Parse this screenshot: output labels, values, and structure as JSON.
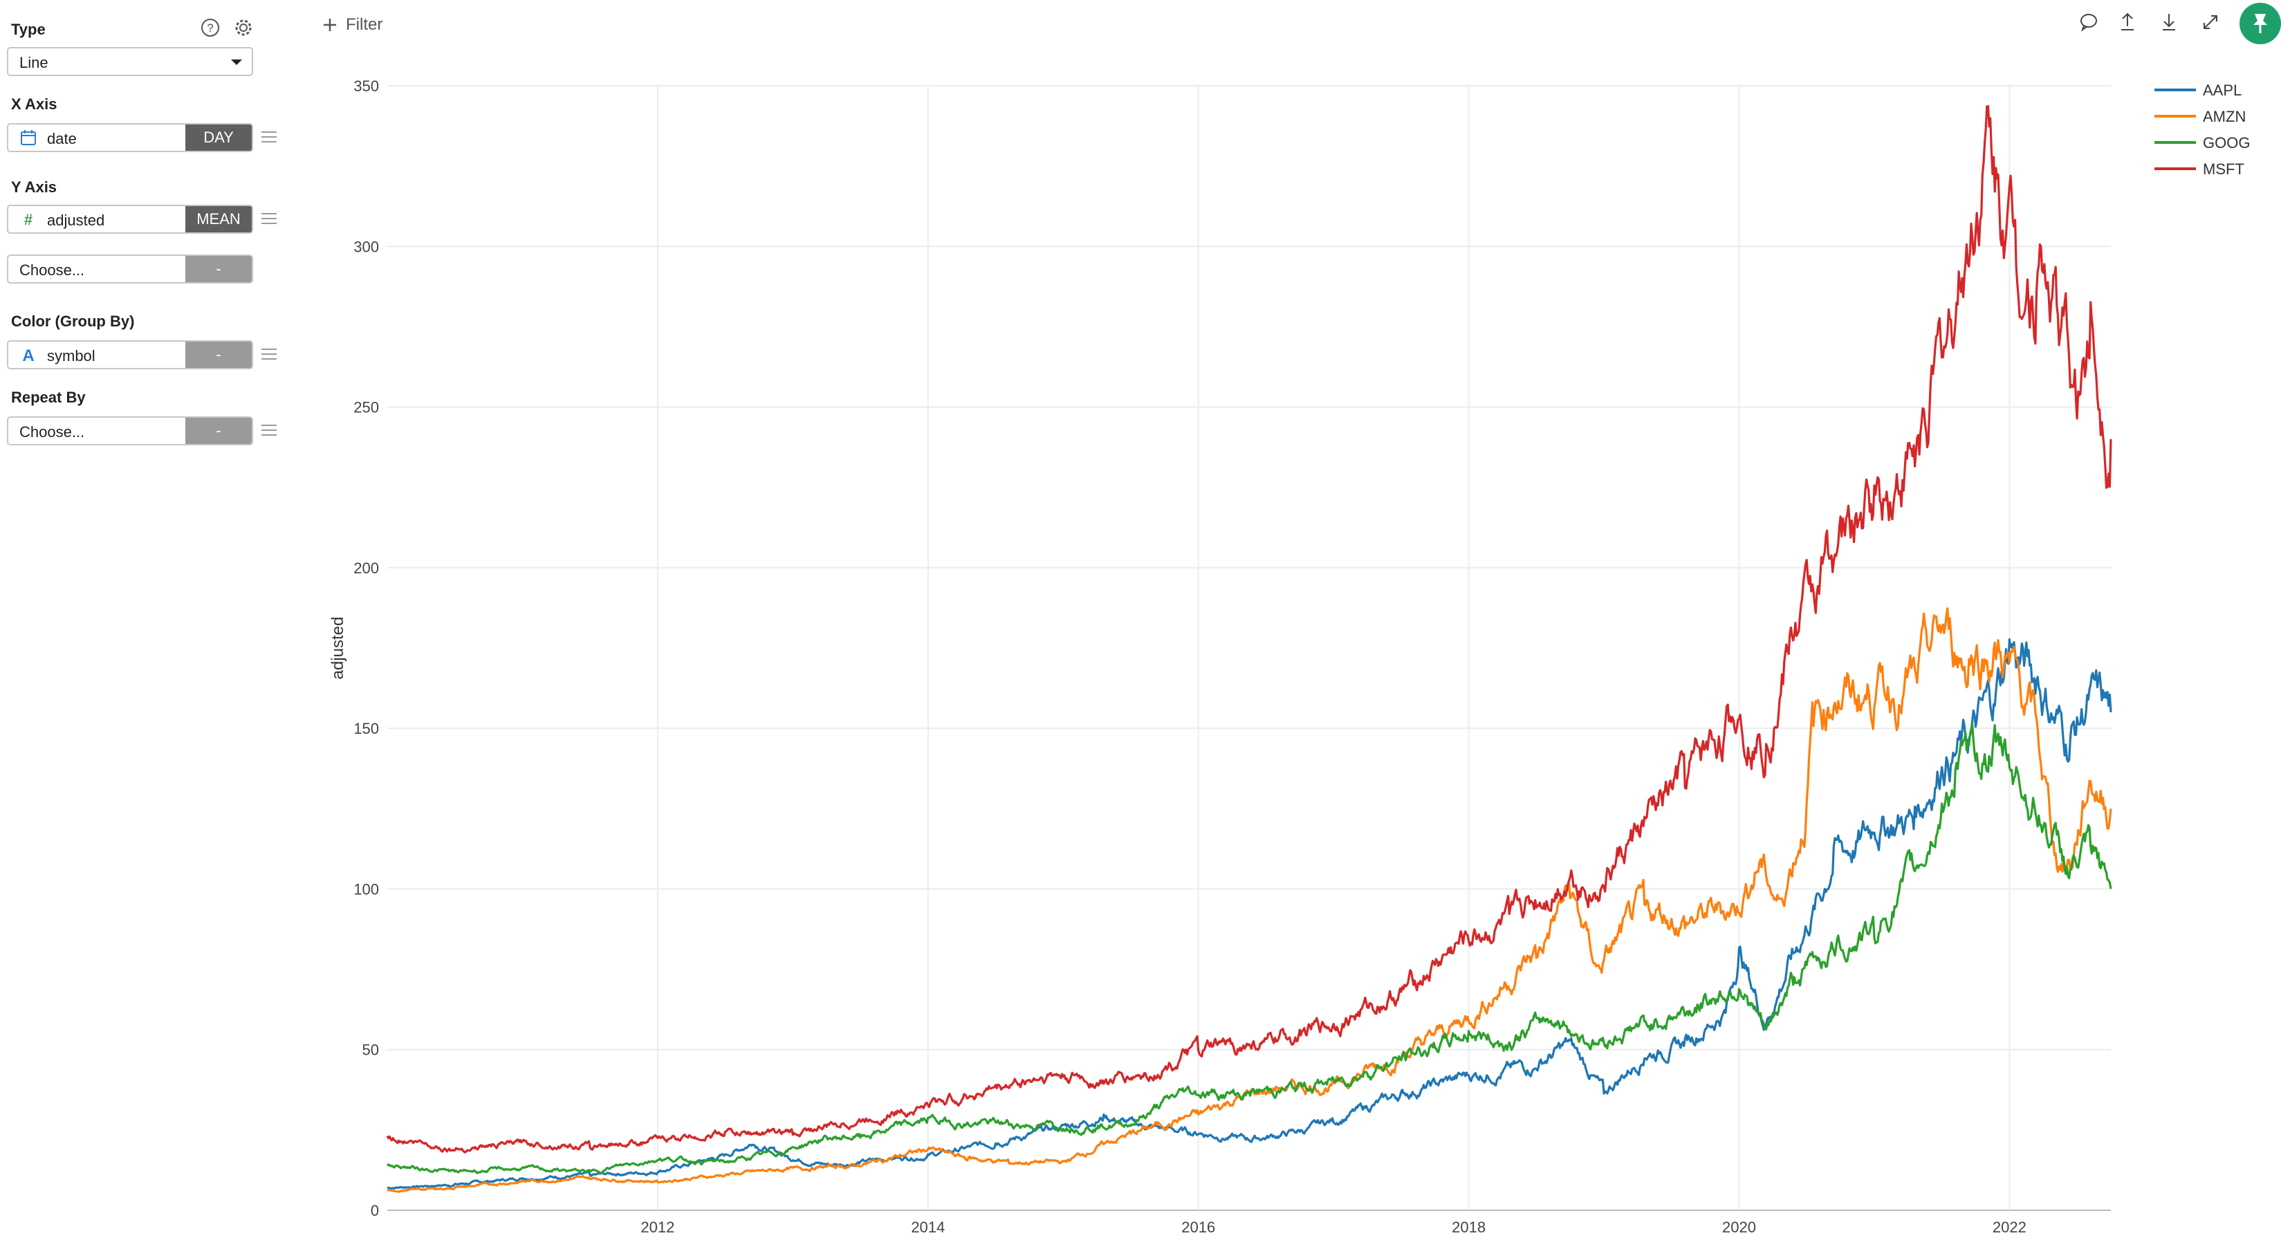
{
  "panel": {
    "type_label": "Type",
    "type_value": "Line",
    "xaxis_label": "X Axis",
    "xaxis_field": "date",
    "xaxis_agg": "DAY",
    "yaxis_label": "Y Axis",
    "yaxis_field": "adjusted",
    "yaxis_agg": "MEAN",
    "yaxis2_placeholder": "Choose...",
    "yaxis2_agg": "-",
    "color_label": "Color (Group By)",
    "color_field": "symbol",
    "color_agg": "-",
    "repeat_label": "Repeat By",
    "repeat_placeholder": "Choose...",
    "repeat_agg": "-"
  },
  "toolbar": {
    "filter_label": "Filter",
    "icons": [
      "comment-icon",
      "export-icon",
      "download-icon",
      "expand-icon",
      "pin-icon"
    ]
  },
  "colors": {
    "AAPL": "#1f77b4",
    "AMZN": "#ff7f0e",
    "GOOG": "#2ca02c",
    "MSFT": "#d62728",
    "accent": "#1fa06a"
  },
  "chart_data": {
    "type": "line",
    "ylabel": "adjusted",
    "xlabel": "",
    "ylim": [
      0,
      350
    ],
    "xlim": [
      2010.0,
      2022.75
    ],
    "y_ticks": [
      "0",
      "50",
      "100",
      "150",
      "200",
      "250",
      "300",
      "350"
    ],
    "x_ticks": [
      "2012",
      "2014",
      "2016",
      "2018",
      "2020",
      "2022"
    ],
    "grid": true,
    "legend_position": "top-right",
    "series": [
      {
        "name": "AAPL",
        "x": [
          2010.0,
          2010.5,
          2011.0,
          2011.5,
          2012.0,
          2012.5,
          2012.7,
          2013.0,
          2013.3,
          2013.7,
          2014.0,
          2014.5,
          2014.9,
          2015.3,
          2015.6,
          2016.0,
          2016.4,
          2016.8,
          2017.0,
          2017.5,
          2018.0,
          2018.5,
          2018.75,
          2019.0,
          2019.3,
          2019.6,
          2019.9,
          2020.0,
          2020.2,
          2020.4,
          2020.6,
          2020.7,
          2020.9,
          2021.0,
          2021.3,
          2021.5,
          2021.7,
          2021.9,
          2022.0,
          2022.2,
          2022.45,
          2022.6,
          2022.75
        ],
        "values": [
          7,
          8,
          10,
          11,
          12,
          17,
          21,
          16,
          14,
          16,
          17,
          21,
          25,
          29,
          26,
          24,
          22,
          25,
          28,
          36,
          42,
          45,
          52,
          37,
          48,
          52,
          62,
          80,
          58,
          80,
          98,
          110,
          115,
          120,
          122,
          140,
          145,
          160,
          175,
          165,
          145,
          160,
          155
        ]
      },
      {
        "name": "AMZN",
        "x": [
          2010.0,
          2010.5,
          2011.0,
          2011.5,
          2012.0,
          2012.5,
          2013.0,
          2013.5,
          2014.0,
          2014.3,
          2014.6,
          2015.0,
          2015.5,
          2016.0,
          2016.3,
          2016.6,
          2017.0,
          2017.5,
          2018.0,
          2018.5,
          2018.75,
          2018.95,
          2019.3,
          2019.6,
          2020.0,
          2020.15,
          2020.3,
          2020.5,
          2020.55,
          2020.7,
          2021.0,
          2021.3,
          2021.5,
          2021.7,
          2021.9,
          2022.0,
          2022.2,
          2022.35,
          2022.45,
          2022.6,
          2022.75
        ],
        "values": [
          6,
          7,
          9,
          10,
          9,
          11,
          13,
          14,
          19,
          16,
          15,
          15,
          24,
          30,
          35,
          38,
          39,
          48,
          60,
          80,
          100,
          75,
          95,
          90,
          95,
          108,
          95,
          125,
          155,
          160,
          160,
          165,
          180,
          170,
          175,
          170,
          150,
          110,
          108,
          135,
          125
        ]
      },
      {
        "name": "GOOG",
        "x": [
          2010.0,
          2010.5,
          2011.0,
          2011.5,
          2012.0,
          2012.5,
          2012.9,
          2013.2,
          2013.5,
          2014.0,
          2014.3,
          2014.6,
          2015.0,
          2015.5,
          2015.9,
          2016.3,
          2016.7,
          2017.0,
          2017.5,
          2018.0,
          2018.3,
          2018.6,
          2018.95,
          2019.3,
          2019.6,
          2020.0,
          2020.2,
          2020.4,
          2020.7,
          2021.0,
          2021.3,
          2021.6,
          2021.9,
          2022.0,
          2022.2,
          2022.45,
          2022.6,
          2022.75
        ],
        "values": [
          14,
          12,
          13,
          12,
          16,
          15,
          18,
          22,
          23,
          28,
          27,
          27,
          26,
          27,
          37,
          36,
          38,
          40,
          47,
          55,
          52,
          60,
          52,
          58,
          62,
          70,
          55,
          72,
          82,
          87,
          105,
          135,
          145,
          140,
          125,
          105,
          112,
          100
        ]
      },
      {
        "name": "MSFT",
        "x": [
          2010.0,
          2010.5,
          2011.0,
          2011.5,
          2012.0,
          2012.5,
          2013.0,
          2013.5,
          2014.0,
          2014.5,
          2014.9,
          2015.3,
          2015.7,
          2016.0,
          2016.5,
          2017.0,
          2017.5,
          2018.0,
          2018.3,
          2018.75,
          2018.95,
          2019.3,
          2019.6,
          2020.0,
          2020.2,
          2020.4,
          2020.7,
          2021.0,
          2021.3,
          2021.6,
          2021.85,
          2021.95,
          2022.05,
          2022.2,
          2022.35,
          2022.5,
          2022.6,
          2022.75
        ],
        "values": [
          23,
          19,
          21,
          20,
          22,
          24,
          24,
          28,
          33,
          38,
          42,
          40,
          43,
          50,
          52,
          58,
          68,
          85,
          90,
          105,
          100,
          120,
          135,
          155,
          145,
          180,
          205,
          220,
          235,
          280,
          335,
          310,
          300,
          290,
          285,
          250,
          275,
          240
        ]
      }
    ]
  }
}
